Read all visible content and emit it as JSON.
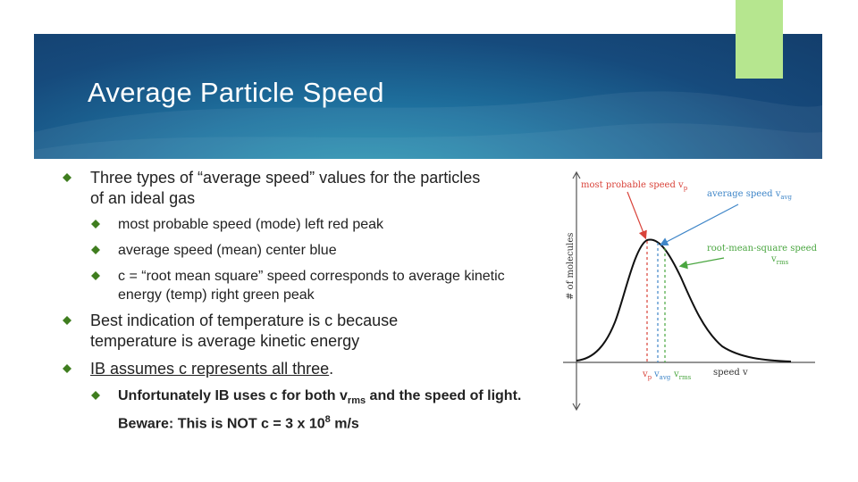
{
  "slide": {
    "title": "Average Particle Speed",
    "colors": {
      "banner_dark": "#133e6c",
      "banner_light": "#2a9bb5",
      "accent_green": "#b6e68f",
      "bullet_green": "#3f7d1f"
    }
  },
  "bullets": {
    "b1": "Three types of “average speed” values for the particles of an ideal gas",
    "b1_1": "most probable speed (mode) left red peak",
    "b1_2": "average speed (mean) center blue",
    "b1_3": "c = “root mean square” speed corresponds to average kinetic energy  (temp) right green peak",
    "b2": "Best indication of temperature is c because temperature is average kinetic energy",
    "b3_underlined": "IB assumes c represents all three",
    "b3_end": ".",
    "b3_1": {
      "p1": "Unfortunately IB uses c for both v",
      "sub": "rms",
      "p2": " and the speed of light. Beware: This is NOT c = 3 x 10",
      "sup": "8",
      "p3": " m/s"
    }
  },
  "figure": {
    "y_axis_label": "# of molecules",
    "x_axis_label": "speed v",
    "label_most_probable": "most probable speed v",
    "label_most_probable_sub": "p",
    "label_average": "average speed v",
    "label_average_sub": "avg",
    "label_rms_1": "root-mean-square speed",
    "label_rms_2": "v",
    "label_rms_2_sub": "rms",
    "tick_vp": "v",
    "tick_vp_sub": "p",
    "tick_vavg": "v",
    "tick_vavg_sub": "avg",
    "tick_vrms": "v",
    "tick_vrms_sub": "rms",
    "colors": {
      "most_probable": "#d9433a",
      "average": "#3f86c8",
      "rms": "#4aa640",
      "curve": "#111111"
    }
  }
}
